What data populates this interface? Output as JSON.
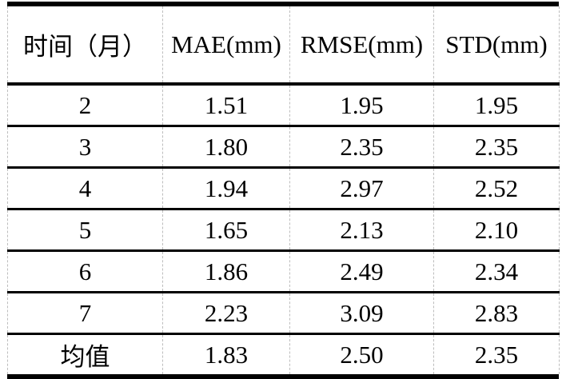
{
  "table": {
    "title": "monthly-error-statistics",
    "columns": [
      {
        "label": "时间（月）"
      },
      {
        "label": "MAE(mm)"
      },
      {
        "label": "RMSE(mm)"
      },
      {
        "label": "STD(mm)"
      }
    ],
    "rows": [
      {
        "cells": [
          "2",
          "1.51",
          "1.95",
          "1.95"
        ]
      },
      {
        "cells": [
          "3",
          "1.80",
          "2.35",
          "2.35"
        ]
      },
      {
        "cells": [
          "4",
          "1.94",
          "2.97",
          "2.52"
        ]
      },
      {
        "cells": [
          "5",
          "1.65",
          "2.13",
          "2.10"
        ]
      },
      {
        "cells": [
          "6",
          "1.86",
          "2.49",
          "2.34"
        ]
      },
      {
        "cells": [
          "7",
          "2.23",
          "3.09",
          "2.83"
        ]
      },
      {
        "cells": [
          "均值",
          "1.83",
          "2.50",
          "2.35"
        ]
      }
    ],
    "colors": {
      "text": "#000000",
      "background": "#ffffff",
      "rule": "#000000",
      "grid_dashed": "#bdbdbd"
    }
  }
}
